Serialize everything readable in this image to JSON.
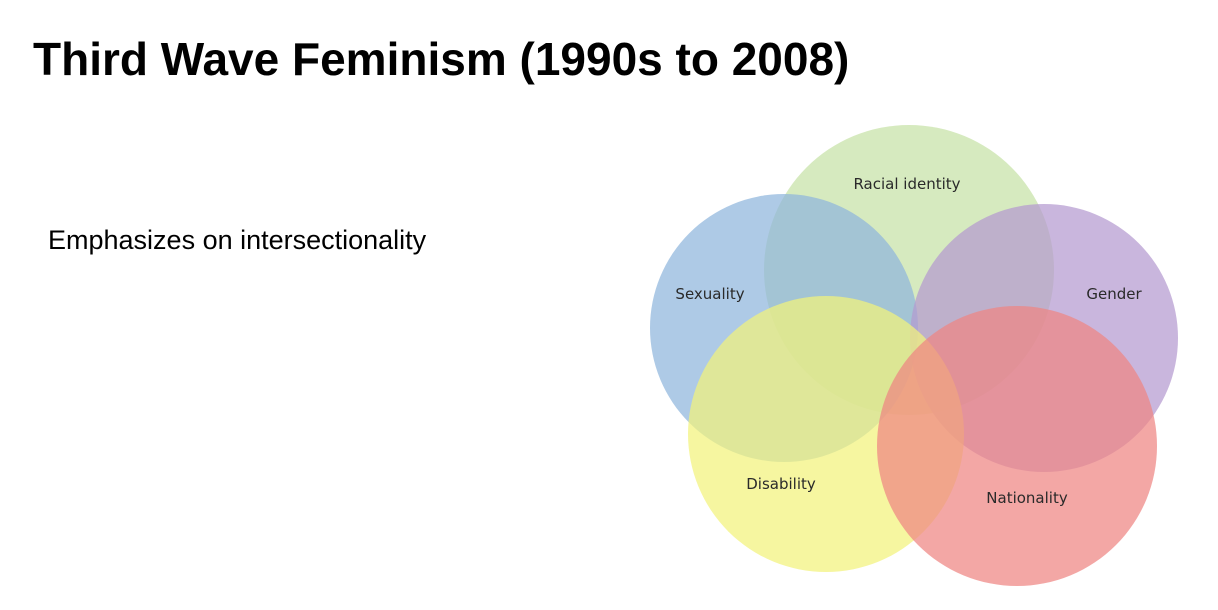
{
  "slide": {
    "title": "Third Wave Feminism (1990s to 2008)",
    "bullet": "Emphasizes on intersectionality"
  },
  "diagram": {
    "type": "venn",
    "sets": [
      {
        "key": "racial_identity",
        "label": "Racial identity",
        "color": "#c6e2a6"
      },
      {
        "key": "sexuality",
        "label": "Sexuality",
        "color": "#8fb6dc"
      },
      {
        "key": "gender",
        "label": "Gender",
        "color": "#b49ad0"
      },
      {
        "key": "disability",
        "label": "Disability",
        "color": "#f2f37c"
      },
      {
        "key": "nationality",
        "label": "Nationality",
        "color": "#ee8582"
      }
    ]
  }
}
